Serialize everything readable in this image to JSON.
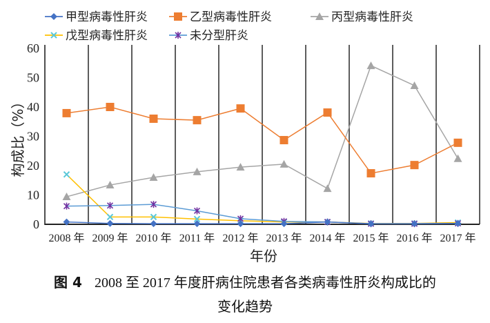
{
  "chart_data": {
    "type": "line",
    "title": "",
    "xlabel": "年份",
    "ylabel": "构成比（%）",
    "ylim": [
      0,
      60
    ],
    "yticks": [
      0,
      10,
      20,
      30,
      40,
      50,
      60
    ],
    "grid": "vertical lines at category boundaries",
    "legend_position": "top",
    "categories": [
      "2008 年",
      "2009 年",
      "2010 年",
      "2011 年",
      "2012 年",
      "2013 年",
      "2014 年",
      "2015 年",
      "2016 年",
      "2017 年"
    ],
    "series": [
      {
        "name": "甲型病毒性肝炎",
        "color": "#4472c4",
        "marker": "diamond",
        "values": [
          0.8,
          0.3,
          0.2,
          0.2,
          0.2,
          0.2,
          0.8,
          0.2,
          0.2,
          0.3
        ]
      },
      {
        "name": "乙型病毒性肝炎",
        "color": "#ed7d31",
        "marker": "square",
        "values": [
          37.9,
          40.0,
          36.0,
          35.5,
          39.5,
          28.7,
          38.1,
          17.4,
          20.2,
          27.8
        ]
      },
      {
        "name": "丙型病毒性肝炎",
        "color": "#a5a5a5",
        "marker": "triangle",
        "values": [
          9.4,
          13.4,
          16.0,
          17.9,
          19.5,
          20.5,
          12.2,
          54.1,
          47.3,
          22.4
        ]
      },
      {
        "name": "戊型病毒性肝炎",
        "color": "#ffc000",
        "marker": "x",
        "marker_color": "#5bc8d8",
        "values": [
          17.0,
          2.5,
          2.5,
          1.8,
          1.2,
          0.8,
          0.8,
          0.3,
          0.3,
          0.6
        ]
      },
      {
        "name": "未分型肝炎",
        "color": "#5b9bd5",
        "marker": "star",
        "marker_color": "#7030a0",
        "values": [
          6.2,
          6.4,
          6.8,
          4.6,
          1.9,
          1.0,
          0.8,
          0.2,
          0.2,
          0.3
        ]
      }
    ]
  },
  "caption": {
    "label": "图 4",
    "line1": "2008 至 2017 年度肝病住院患者各类病毒性肝炎构成比的",
    "line2": "变化趋势"
  }
}
